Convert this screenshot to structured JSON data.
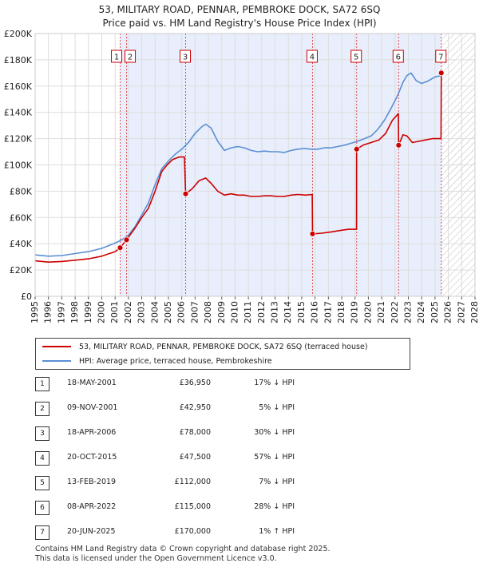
{
  "chart_data": {
    "type": "line",
    "title": "53, MILITARY ROAD, PENNAR, PEMBROKE DOCK, SA72 6SQ",
    "subtitle": "Price paid vs. HM Land Registry's House Price Index (HPI)",
    "xlim": [
      1995,
      2028
    ],
    "ylim": [
      0,
      200000
    ],
    "x_ticks": [
      "1995",
      "1996",
      "1997",
      "1998",
      "1999",
      "2000",
      "2001",
      "2002",
      "2003",
      "2004",
      "2005",
      "2006",
      "2007",
      "2008",
      "2009",
      "2010",
      "2011",
      "2012",
      "2013",
      "2014",
      "2015",
      "2016",
      "2017",
      "2018",
      "2019",
      "2020",
      "2021",
      "2022",
      "2023",
      "2024",
      "2025",
      "2026",
      "2027",
      "2028"
    ],
    "y_ticks": [
      {
        "value": 0,
        "label": "£0"
      },
      {
        "value": 20000,
        "label": "£20K"
      },
      {
        "value": 40000,
        "label": "£40K"
      },
      {
        "value": 60000,
        "label": "£60K"
      },
      {
        "value": 80000,
        "label": "£80K"
      },
      {
        "value": 100000,
        "label": "£100K"
      },
      {
        "value": 120000,
        "label": "£120K"
      },
      {
        "value": 140000,
        "label": "£140K"
      },
      {
        "value": 160000,
        "label": "£160K"
      },
      {
        "value": 180000,
        "label": "£180K"
      },
      {
        "value": 200000,
        "label": "£200K"
      }
    ],
    "shaded_period": [
      2001.38,
      2025.47
    ],
    "hatched_period": [
      2025.47,
      2028
    ],
    "series": [
      {
        "name": "53, MILITARY ROAD, PENNAR, PEMBROKE DOCK, SA72 6SQ (terraced house)",
        "color": "#cc0000",
        "points": [
          [
            1995.0,
            27000
          ],
          [
            1996.0,
            26000
          ],
          [
            1997.0,
            26500
          ],
          [
            1998.0,
            27500
          ],
          [
            1999.0,
            28500
          ],
          [
            2000.0,
            30500
          ],
          [
            2001.0,
            34000
          ],
          [
            2001.38,
            36950
          ],
          [
            2001.86,
            42950
          ],
          [
            2002.5,
            52000
          ],
          [
            2003.0,
            60000
          ],
          [
            2003.5,
            67000
          ],
          [
            2004.0,
            80000
          ],
          [
            2004.5,
            95000
          ],
          [
            2004.9,
            100000
          ],
          [
            2005.3,
            104000
          ],
          [
            2005.8,
            106000
          ],
          [
            2006.2,
            106000
          ],
          [
            2006.29,
            78000
          ],
          [
            2006.8,
            82000
          ],
          [
            2007.3,
            88000
          ],
          [
            2007.8,
            90000
          ],
          [
            2008.2,
            86000
          ],
          [
            2008.7,
            80000
          ],
          [
            2009.2,
            77000
          ],
          [
            2009.7,
            78000
          ],
          [
            2010.2,
            77000
          ],
          [
            2010.7,
            77000
          ],
          [
            2011.2,
            76000
          ],
          [
            2011.7,
            76000
          ],
          [
            2012.2,
            76500
          ],
          [
            2012.7,
            76500
          ],
          [
            2013.2,
            76000
          ],
          [
            2013.7,
            76000
          ],
          [
            2014.2,
            77000
          ],
          [
            2014.7,
            77500
          ],
          [
            2015.3,
            77000
          ],
          [
            2015.79,
            77500
          ],
          [
            2015.81,
            47500
          ],
          [
            2016.5,
            48000
          ],
          [
            2017.2,
            49000
          ],
          [
            2017.8,
            50000
          ],
          [
            2018.5,
            51000
          ],
          [
            2019.11,
            51000
          ],
          [
            2019.12,
            112000
          ],
          [
            2019.6,
            115000
          ],
          [
            2020.2,
            117000
          ],
          [
            2020.8,
            119000
          ],
          [
            2021.3,
            124000
          ],
          [
            2021.8,
            134000
          ],
          [
            2022.25,
            139000
          ],
          [
            2022.27,
            115000
          ],
          [
            2022.6,
            123000
          ],
          [
            2022.9,
            122000
          ],
          [
            2023.3,
            117000
          ],
          [
            2023.8,
            118000
          ],
          [
            2024.3,
            119000
          ],
          [
            2024.8,
            120000
          ],
          [
            2025.4,
            120000
          ],
          [
            2025.45,
            120000
          ],
          [
            2025.47,
            170000
          ]
        ]
      },
      {
        "name": "HPI: Average price, terraced house, Pembrokeshire",
        "color": "#5b8fd4",
        "points": [
          [
            1995.0,
            31500
          ],
          [
            1996.0,
            30500
          ],
          [
            1997.0,
            31000
          ],
          [
            1998.0,
            32500
          ],
          [
            1999.0,
            34000
          ],
          [
            2000.0,
            36500
          ],
          [
            2001.0,
            40500
          ],
          [
            2001.5,
            43000
          ],
          [
            2002.0,
            46500
          ],
          [
            2002.5,
            53000
          ],
          [
            2003.0,
            62000
          ],
          [
            2003.5,
            71000
          ],
          [
            2004.0,
            85000
          ],
          [
            2004.5,
            97000
          ],
          [
            2005.0,
            103000
          ],
          [
            2005.5,
            108000
          ],
          [
            2006.0,
            112000
          ],
          [
            2006.5,
            117000
          ],
          [
            2007.0,
            124000
          ],
          [
            2007.5,
            129000
          ],
          [
            2007.8,
            131000
          ],
          [
            2008.2,
            128000
          ],
          [
            2008.7,
            118000
          ],
          [
            2009.2,
            111000
          ],
          [
            2009.7,
            113000
          ],
          [
            2010.2,
            114000
          ],
          [
            2010.7,
            113000
          ],
          [
            2011.2,
            111000
          ],
          [
            2011.7,
            110000
          ],
          [
            2012.2,
            110500
          ],
          [
            2012.7,
            110000
          ],
          [
            2013.2,
            110000
          ],
          [
            2013.7,
            109500
          ],
          [
            2014.2,
            111000
          ],
          [
            2014.7,
            112000
          ],
          [
            2015.2,
            112500
          ],
          [
            2015.7,
            112000
          ],
          [
            2016.2,
            112000
          ],
          [
            2016.7,
            113000
          ],
          [
            2017.2,
            113000
          ],
          [
            2017.7,
            114000
          ],
          [
            2018.2,
            115000
          ],
          [
            2018.7,
            116500
          ],
          [
            2019.2,
            118000
          ],
          [
            2019.7,
            120000
          ],
          [
            2020.2,
            122000
          ],
          [
            2020.7,
            127000
          ],
          [
            2021.2,
            134000
          ],
          [
            2021.7,
            143000
          ],
          [
            2022.2,
            153000
          ],
          [
            2022.6,
            163000
          ],
          [
            2022.9,
            168000
          ],
          [
            2023.2,
            170000
          ],
          [
            2023.6,
            164000
          ],
          [
            2024.0,
            162000
          ],
          [
            2024.5,
            164000
          ],
          [
            2025.0,
            167000
          ],
          [
            2025.47,
            168000
          ]
        ]
      }
    ],
    "sales": [
      {
        "id": "1",
        "x": 2001.38,
        "price": 36950,
        "date": "18-MAY-2001",
        "price_label": "£36,950",
        "hpi_label": "17% ↓ HPI"
      },
      {
        "id": "2",
        "x": 2001.86,
        "price": 42950,
        "date": "09-NOV-2001",
        "price_label": "£42,950",
        "hpi_label": "5% ↓ HPI"
      },
      {
        "id": "3",
        "x": 2006.29,
        "price": 78000,
        "date": "18-APR-2006",
        "price_label": "£78,000",
        "hpi_label": "30% ↓ HPI"
      },
      {
        "id": "4",
        "x": 2015.81,
        "price": 47500,
        "date": "20-OCT-2015",
        "price_label": "£47,500",
        "hpi_label": "57% ↓ HPI"
      },
      {
        "id": "5",
        "x": 2019.12,
        "price": 112000,
        "date": "13-FEB-2019",
        "price_label": "£112,000",
        "hpi_label": "7% ↓ HPI"
      },
      {
        "id": "6",
        "x": 2022.27,
        "price": 115000,
        "date": "08-APR-2022",
        "price_label": "£115,000",
        "hpi_label": "28% ↓ HPI"
      },
      {
        "id": "7",
        "x": 2025.47,
        "price": 170000,
        "date": "20-JUN-2025",
        "price_label": "£170,000",
        "hpi_label": "1% ↑ HPI"
      }
    ]
  },
  "legend": {
    "property_label": "53, MILITARY ROAD, PENNAR, PEMBROKE DOCK, SA72 6SQ (terraced house)",
    "hpi_label": "HPI: Average price, terraced house, Pembrokeshire"
  },
  "footer": {
    "line1": "Contains HM Land Registry data © Crown copyright and database right 2025.",
    "line2": "This data is licensed under the Open Government Licence v3.0."
  }
}
